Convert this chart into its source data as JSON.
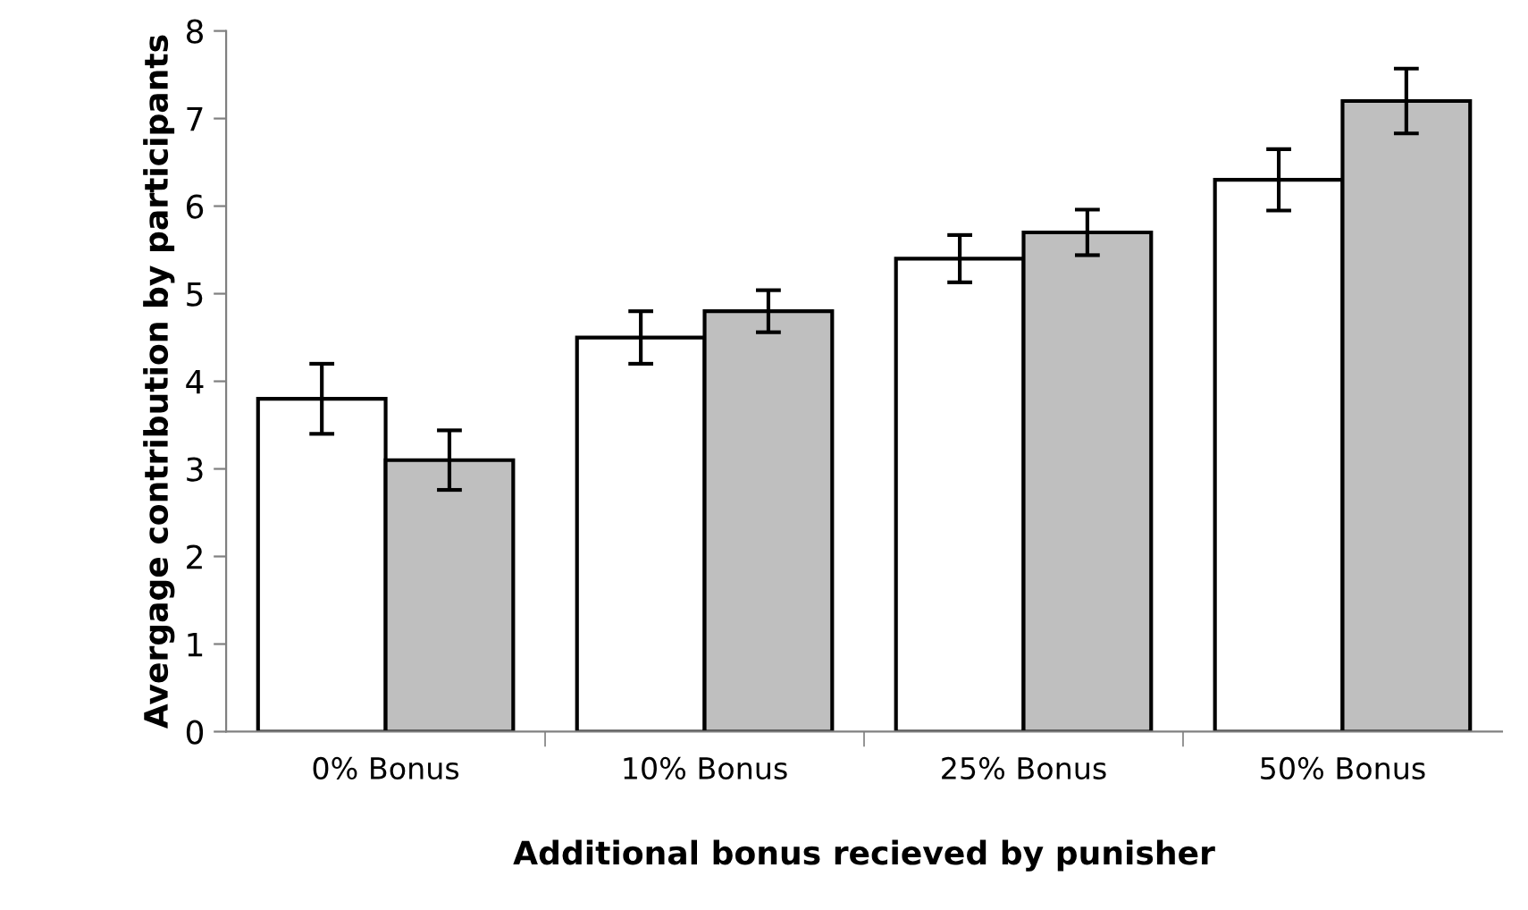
{
  "chart_data": {
    "type": "bar",
    "xlabel": "Additional bonus recieved by punisher",
    "ylabel": "Avergage contribution by participants",
    "categories": [
      "0% Bonus",
      "10% Bonus",
      "25% Bonus",
      "50% Bonus"
    ],
    "series": [
      {
        "color": "#ffffff",
        "values": [
          3.8,
          4.5,
          5.4,
          6.3
        ],
        "errors": [
          0.4,
          0.3,
          0.27,
          0.35
        ]
      },
      {
        "color": "#bfbfbf",
        "values": [
          3.1,
          4.8,
          5.7,
          7.2
        ],
        "errors": [
          0.34,
          0.24,
          0.26,
          0.37
        ]
      }
    ],
    "ylim": [
      0,
      8
    ],
    "yticks": [
      0,
      1,
      2,
      3,
      4,
      5,
      6,
      7,
      8
    ],
    "grid": false,
    "legend": false
  }
}
